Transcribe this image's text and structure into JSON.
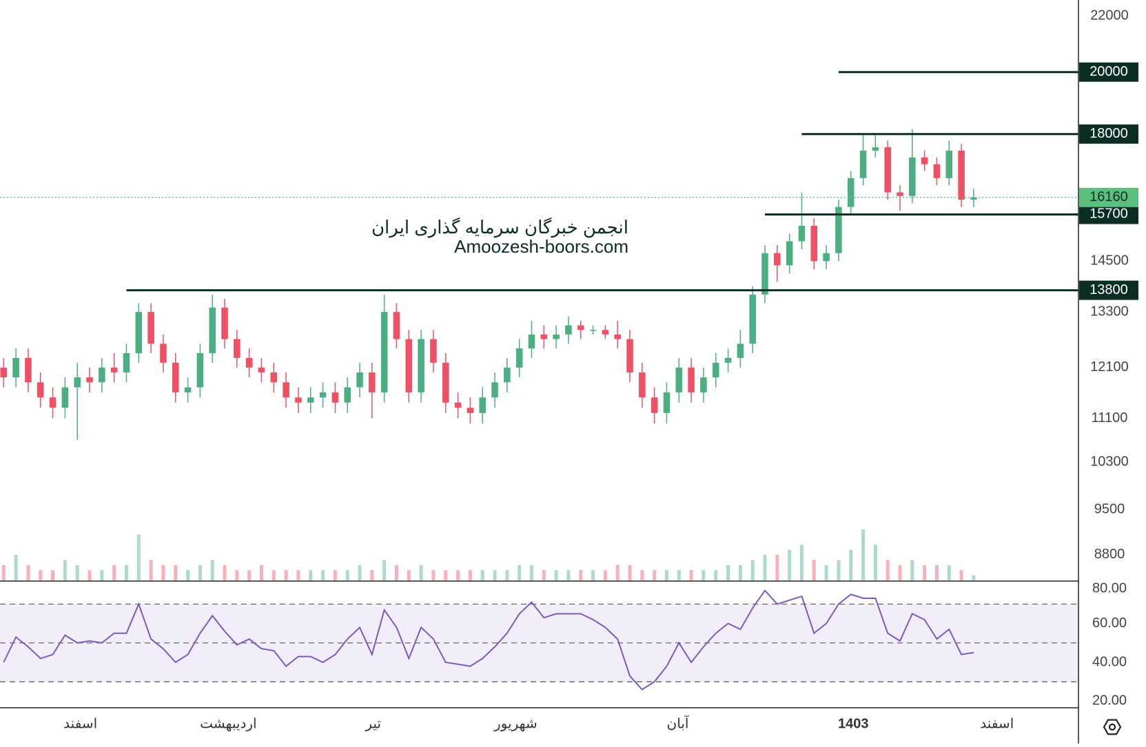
{
  "chart_data": {
    "type": "candlestick",
    "log_scale": true,
    "up_color": "#4caf82",
    "down_color": "#ef5064",
    "ylim": [
      8425,
      22610
    ],
    "yticks": [
      22000,
      14500,
      13300,
      12100,
      11100,
      10300,
      9500,
      8800
    ],
    "watermark": [
      "انجمن خبرگان سرمایه گذاری ایران",
      "Amoozesh-boors.com"
    ],
    "xticks": [
      {
        "value": 6.25,
        "label": "اسفند"
      },
      {
        "value": 18.3,
        "label": "اردیبهشت"
      },
      {
        "value": 30.1,
        "label": "تیر"
      },
      {
        "value": 41.7,
        "label": "شهریور"
      },
      {
        "value": 54.9,
        "label": "آبان"
      },
      {
        "value": 69.2,
        "label": "1403"
      },
      {
        "value": 80.9,
        "label": "اسفند"
      }
    ],
    "levels": [
      {
        "value": 20000,
        "start": 68,
        "color": "#0b2e24"
      },
      {
        "value": 18000,
        "start": 65,
        "color": "#0b2e24"
      },
      {
        "value": 15700,
        "start": 62,
        "color": "#0b2e24"
      },
      {
        "value": 13800,
        "start": 10,
        "color": "#0b2e24"
      }
    ],
    "last_price_color": "#5cbf7f",
    "open": [
      12100,
      11900,
      12300,
      11800,
      11500,
      11300,
      11700,
      11900,
      11800,
      12100,
      12000,
      12400,
      13300,
      12600,
      12200,
      11600,
      11700,
      12400,
      13400,
      12700,
      12300,
      12100,
      12000,
      11800,
      11500,
      11400,
      11500,
      11600,
      11400,
      11700,
      12000,
      11600,
      13300,
      12700,
      11600,
      12700,
      12200,
      11400,
      11300,
      11200,
      11500,
      11800,
      12100,
      12500,
      12800,
      12700,
      12800,
      13000,
      12900,
      12900,
      12800,
      12700,
      12000,
      11500,
      11200,
      11600,
      12100,
      11600,
      11900,
      12200,
      12300,
      12600,
      13700,
      14700,
      14400,
      15000,
      15400,
      14500,
      14700,
      15900,
      16700,
      17500,
      17600,
      16300,
      16200,
      17300,
      17100,
      16700,
      17500,
      16100
    ],
    "high": [
      12300,
      12500,
      12500,
      12000,
      11700,
      11900,
      12200,
      12100,
      12300,
      12400,
      12600,
      13500,
      13500,
      12800,
      12400,
      11900,
      12600,
      13700,
      13600,
      12900,
      12500,
      12300,
      12200,
      12000,
      11700,
      11700,
      11800,
      11800,
      11900,
      12200,
      12200,
      13700,
      13500,
      12900,
      12900,
      12900,
      12400,
      11600,
      11500,
      11700,
      12000,
      12300,
      12700,
      13100,
      13000,
      13000,
      13200,
      13100,
      13000,
      13000,
      13100,
      12900,
      12200,
      11700,
      11800,
      12300,
      12300,
      12100,
      12400,
      12500,
      12900,
      13900,
      14900,
      14900,
      15200,
      16300,
      15600,
      14900,
      16100,
      16900,
      18000,
      18000,
      17800,
      16500,
      18150,
      17500,
      17300,
      17800,
      17700,
      16400
    ],
    "low": [
      11700,
      11700,
      11600,
      11300,
      11100,
      11100,
      10700,
      11600,
      11600,
      11800,
      11800,
      12200,
      12400,
      12000,
      11400,
      11400,
      11500,
      12200,
      12500,
      12100,
      11900,
      11800,
      11600,
      11300,
      11200,
      11200,
      11300,
      11200,
      11200,
      11500,
      11100,
      11400,
      12500,
      11400,
      11400,
      12000,
      11200,
      11100,
      11000,
      11000,
      11300,
      11600,
      11900,
      12300,
      12500,
      12500,
      12600,
      12700,
      12800,
      12700,
      12500,
      11800,
      11300,
      11000,
      11000,
      11400,
      11400,
      11400,
      11700,
      12000,
      12100,
      12400,
      13500,
      14000,
      14200,
      14800,
      14300,
      14300,
      14500,
      15700,
      16500,
      17300,
      16100,
      15800,
      16000,
      16900,
      16500,
      16500,
      15900,
      15900
    ],
    "close": [
      11900,
      12300,
      11800,
      11500,
      11300,
      11700,
      11900,
      11800,
      12100,
      12000,
      12400,
      13300,
      12600,
      12200,
      11600,
      11700,
      12400,
      13400,
      12700,
      12300,
      12100,
      12000,
      11800,
      11500,
      11400,
      11500,
      11600,
      11400,
      11700,
      12000,
      11600,
      13300,
      12700,
      11600,
      12700,
      12200,
      11400,
      11300,
      11200,
      11500,
      11800,
      12100,
      12500,
      12800,
      12700,
      12800,
      13000,
      12900,
      12900,
      12800,
      12700,
      12000,
      11500,
      11200,
      11600,
      12100,
      11600,
      11900,
      12200,
      12300,
      12600,
      13700,
      14700,
      14400,
      15000,
      15400,
      14500,
      14700,
      15900,
      16700,
      17500,
      17600,
      16300,
      16200,
      17300,
      17100,
      16700,
      17500,
      16100,
      16160
    ],
    "volume": [
      3,
      5,
      3,
      2,
      2,
      4,
      3,
      2,
      2,
      3,
      3,
      9,
      4,
      3,
      3,
      2,
      3,
      4,
      3,
      2,
      2,
      3,
      2,
      2,
      2,
      2,
      2,
      2,
      2,
      3,
      2,
      4,
      3,
      2,
      3,
      2,
      2,
      2,
      2,
      2,
      2,
      2,
      3,
      3,
      2,
      2,
      2,
      2,
      2,
      2,
      3,
      3,
      2,
      2,
      2,
      2,
      2,
      2,
      2,
      3,
      3,
      4,
      5,
      5,
      6,
      7,
      4,
      3,
      4,
      6,
      10,
      7,
      4,
      3,
      4,
      3,
      3,
      3,
      2,
      1
    ],
    "rsi": [
      40,
      53,
      48,
      42,
      44,
      54,
      50,
      51,
      50,
      55,
      55,
      70,
      52,
      47,
      40,
      44,
      55,
      64,
      56,
      49,
      52,
      47,
      46,
      38,
      43,
      43,
      40,
      44,
      52,
      58,
      44,
      67,
      58,
      42,
      58,
      52,
      40,
      39,
      38,
      42,
      48,
      55,
      65,
      71,
      63,
      65,
      65,
      65,
      62,
      58,
      52,
      33,
      26,
      30,
      38,
      50,
      40,
      48,
      55,
      60,
      57,
      68,
      77,
      70,
      72,
      74,
      55,
      60,
      70,
      75,
      73,
      73,
      55,
      51,
      65,
      62,
      52,
      57,
      44,
      45
    ],
    "rsi_color": "#7e57c2",
    "rsi_ylim": [
      16.6,
      81.5
    ],
    "rsi_yticks": [
      {
        "value": 80,
        "label": "80.00"
      },
      {
        "value": 60,
        "label": "60.00"
      },
      {
        "value": 40,
        "label": "40.00"
      },
      {
        "value": 20,
        "label": "20.00"
      }
    ],
    "rsi_levels": [
      70,
      50,
      30
    ]
  }
}
